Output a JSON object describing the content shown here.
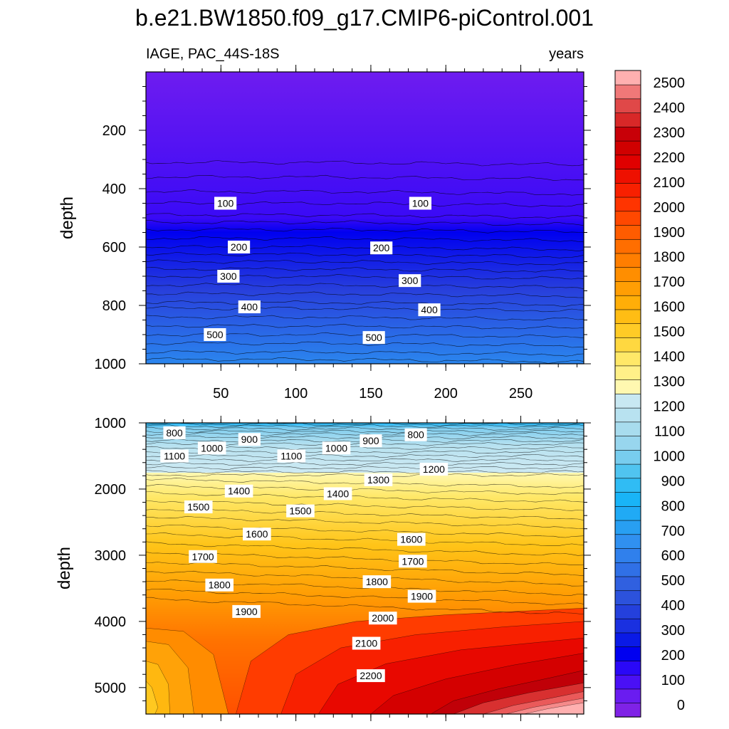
{
  "chart_data": {
    "type": "contour",
    "title": "b.e21.BW1850.f09_g17.CMIP6-piControl.001",
    "subtitle_left": "IAGE, PAC_44S-18S",
    "subtitle_right": "years",
    "xlim": [
      0,
      292
    ],
    "x_ticks": [
      50,
      100,
      150,
      200,
      250
    ],
    "x_tick_labels": [
      "50",
      "100",
      "150",
      "200",
      "250"
    ],
    "colorbar": {
      "levels": [
        0,
        100,
        200,
        300,
        400,
        500,
        600,
        700,
        800,
        900,
        1000,
        1100,
        1200,
        1300,
        1400,
        1500,
        1600,
        1700,
        1800,
        1900,
        2000,
        2100,
        2200,
        2300,
        2400,
        2500
      ],
      "labels": [
        "0",
        "100",
        "200",
        "300",
        "400",
        "500",
        "600",
        "700",
        "800",
        "900",
        "1000",
        "1100",
        "1200",
        "1300",
        "1400",
        "1500",
        "1600",
        "1700",
        "1800",
        "1900",
        "2000",
        "2100",
        "2200",
        "2300",
        "2400",
        "2500"
      ],
      "colors": [
        "#7f22e6",
        "#6a1cf0",
        "#4a10f5",
        "#2a08f7",
        "#0000f0",
        "#0a1ae6",
        "#1a30e0",
        "#2440dc",
        "#2c52dc",
        "#3060e0",
        "#3070e6",
        "#3080ec",
        "#3090f0",
        "#289ff2",
        "#20aaf5",
        "#19b4f7",
        "#30bcf4",
        "#50c4f0",
        "#78cdee",
        "#98d6ee",
        "#a8dcee",
        "#b8e2f0",
        "#c8e8f2",
        "#fff8b0",
        "#fff088",
        "#ffe868",
        "#ffd840",
        "#ffcb26",
        "#ffbd14",
        "#ffae08",
        "#ff9e04",
        "#ff8e00",
        "#ff7e00",
        "#ff6e00",
        "#ff5c00",
        "#ff4800",
        "#ff3400",
        "#f82000",
        "#ee1000",
        "#e00000",
        "#d00000",
        "#c80008",
        "#d82828",
        "#e04848",
        "#f07878",
        "#ffb0b0"
      ]
    },
    "top_panel": {
      "ylabel": "depth",
      "ylim": [
        0,
        1000
      ],
      "y_ticks": [
        200,
        400,
        600,
        800,
        1000
      ],
      "y_tick_labels": [
        "200",
        "400",
        "600",
        "800",
        "1000"
      ],
      "contour_labels": [
        {
          "text": "100",
          "x": 53,
          "y": 450
        },
        {
          "text": "100",
          "x": 183,
          "y": 450
        },
        {
          "text": "200",
          "x": 62,
          "y": 600
        },
        {
          "text": "200",
          "x": 157,
          "y": 603
        },
        {
          "text": "300",
          "x": 55,
          "y": 700
        },
        {
          "text": "300",
          "x": 176,
          "y": 715
        },
        {
          "text": "400",
          "x": 69,
          "y": 805
        },
        {
          "text": "400",
          "x": 189,
          "y": 815
        },
        {
          "text": "500",
          "x": 46,
          "y": 900
        },
        {
          "text": "500",
          "x": 152,
          "y": 910
        }
      ]
    },
    "bottom_panel": {
      "ylabel": "depth",
      "ylim": [
        1000,
        5400
      ],
      "y_ticks": [
        1000,
        2000,
        3000,
        4000,
        5000
      ],
      "y_tick_labels": [
        "1000",
        "2000",
        "3000",
        "4000",
        "5000"
      ],
      "contour_labels": [
        {
          "text": "800",
          "x": 19,
          "y": 1150
        },
        {
          "text": "900",
          "x": 69,
          "y": 1250
        },
        {
          "text": "800",
          "x": 180,
          "y": 1180
        },
        {
          "text": "900",
          "x": 150,
          "y": 1270
        },
        {
          "text": "1000",
          "x": 44,
          "y": 1380
        },
        {
          "text": "1000",
          "x": 127,
          "y": 1380
        },
        {
          "text": "1100",
          "x": 19,
          "y": 1500
        },
        {
          "text": "1100",
          "x": 97,
          "y": 1500
        },
        {
          "text": "1200",
          "x": 192,
          "y": 1700
        },
        {
          "text": "1300",
          "x": 155,
          "y": 1860
        },
        {
          "text": "1400",
          "x": 62,
          "y": 2030
        },
        {
          "text": "1400",
          "x": 128,
          "y": 2070
        },
        {
          "text": "1500",
          "x": 35,
          "y": 2270
        },
        {
          "text": "1500",
          "x": 103,
          "y": 2330
        },
        {
          "text": "1600",
          "x": 74,
          "y": 2680
        },
        {
          "text": "1600",
          "x": 177,
          "y": 2760
        },
        {
          "text": "1700",
          "x": 38,
          "y": 3020
        },
        {
          "text": "1700",
          "x": 178,
          "y": 3090
        },
        {
          "text": "1800",
          "x": 49,
          "y": 3450
        },
        {
          "text": "1800",
          "x": 154,
          "y": 3400
        },
        {
          "text": "1900",
          "x": 67,
          "y": 3850
        },
        {
          "text": "1900",
          "x": 184,
          "y": 3620
        },
        {
          "text": "2000",
          "x": 158,
          "y": 3950
        },
        {
          "text": "2100",
          "x": 147,
          "y": 4330
        },
        {
          "text": "2200",
          "x": 150,
          "y": 4820
        }
      ]
    }
  }
}
